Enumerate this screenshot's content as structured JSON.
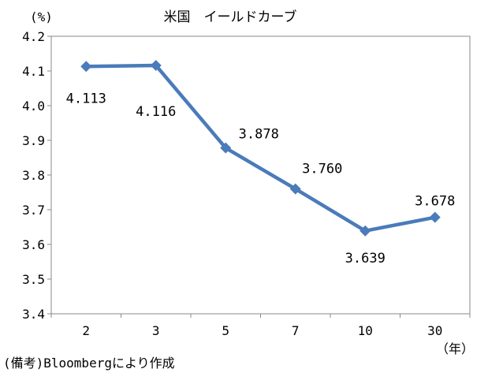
{
  "chart_data": {
    "type": "line",
    "title": "米国　イールドカーブ",
    "ylabel": "(%)",
    "xlabel": "（年）",
    "note": "(備考)Bloombergにより作成",
    "categories": [
      "2",
      "3",
      "5",
      "7",
      "10",
      "30"
    ],
    "series": [
      {
        "values": [
          4.113,
          4.116,
          3.878,
          3.76,
          3.639,
          3.678
        ],
        "data_labels": [
          "4.113",
          "4.116",
          "3.878",
          "3.760",
          "3.639",
          "3.678"
        ],
        "color": "#4a7bba"
      }
    ],
    "ylim": [
      3.4,
      4.2
    ],
    "yticks": [
      "4.2",
      "4.1",
      "4.0",
      "3.9",
      "3.8",
      "3.7",
      "3.6",
      "3.5",
      "3.4"
    ],
    "grid": false,
    "legend": "none"
  }
}
